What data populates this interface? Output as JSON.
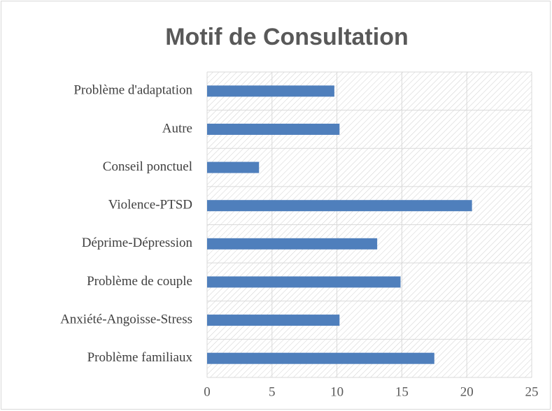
{
  "chart_data": {
    "type": "barh",
    "title": "Motif de Consultation",
    "categories": [
      "Problème d'adaptation",
      "Autre",
      "Conseil ponctuel",
      "Violence-PTSD",
      "Déprime-Dépression",
      "Problème de couple",
      "Anxiété-Angoisse-Stress",
      "Problème familiaux"
    ],
    "values": [
      9.8,
      10.2,
      4,
      20.4,
      13.1,
      14.9,
      10.2,
      17.5
    ],
    "color": "#4f7fbc",
    "xlim": [
      0,
      25
    ],
    "xticks": [
      0,
      5,
      10,
      15,
      20,
      25
    ],
    "grid": true
  }
}
